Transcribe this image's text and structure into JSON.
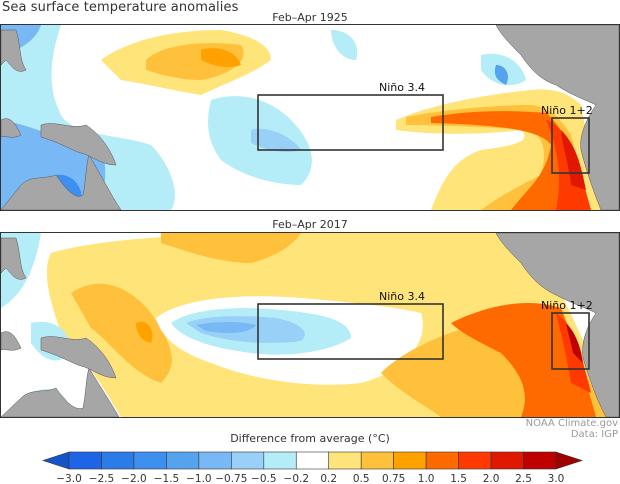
{
  "title": "Sea surface temperature anomalies",
  "panels": [
    {
      "title": "Feb–Apr 1925",
      "regions": [
        {
          "label": "Niño 3.4"
        },
        {
          "label": "Niño 1+2"
        }
      ]
    },
    {
      "title": "Feb–Apr 2017",
      "regions": [
        {
          "label": "Niño 3.4"
        },
        {
          "label": "Niño 1+2"
        }
      ]
    }
  ],
  "credits": {
    "source": "NOAA Climate.gov",
    "data": "Data: IGP"
  },
  "colorbar": {
    "title": "Difference from average (°C)",
    "ticks": [
      "−3.0",
      "−2.5",
      "−2.0",
      "−1.5",
      "−1.0",
      "−0.75",
      "−0.5",
      "−0.2",
      "0.2",
      "0.5",
      "0.75",
      "1.0",
      "1.5",
      "2.0",
      "2.5",
      "3.0"
    ],
    "bins": [
      {
        "range": "-3.0 to -2.5",
        "color": "#1e64e6"
      },
      {
        "range": "-2.5 to -2.0",
        "color": "#2b7be8"
      },
      {
        "range": "-2.0 to -1.5",
        "color": "#3d8ff0"
      },
      {
        "range": "-1.5 to -1.0",
        "color": "#55a3ef"
      },
      {
        "range": "-1.0 to -0.75",
        "color": "#78b8f5"
      },
      {
        "range": "-0.75 to -0.5",
        "color": "#98d0f8"
      },
      {
        "range": "-0.5 to -0.2",
        "color": "#b4ecf7"
      },
      {
        "range": "-0.2 to 0.2",
        "color": "#ffffff"
      },
      {
        "range": "0.2 to 0.5",
        "color": "#ffe47a"
      },
      {
        "range": "0.5 to 0.75",
        "color": "#ffc03c"
      },
      {
        "range": "0.75 to 1.0",
        "color": "#ffa200"
      },
      {
        "range": "1.0 to 1.5",
        "color": "#ff6a00"
      },
      {
        "range": "1.5 to 2.0",
        "color": "#ff3a00"
      },
      {
        "range": "2.0 to 2.5",
        "color": "#e01800"
      },
      {
        "range": "2.5 to 3.0",
        "color": "#c00000"
      }
    ],
    "under_color": "#1652c8",
    "over_color": "#a00000"
  },
  "land_color": "#a6a6a6"
}
